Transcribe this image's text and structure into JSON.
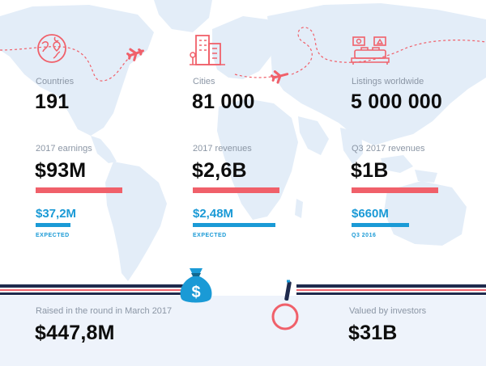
{
  "colors": {
    "accent_red": "#f0606a",
    "accent_blue": "#1a9ad6",
    "map": "#e3edf8",
    "navy": "#1f2a4d"
  },
  "stats_row1": [
    {
      "label": "Countries",
      "value": "191",
      "icon": "globe-pin-icon"
    },
    {
      "label": "Cities",
      "value": "81 000",
      "icon": "city-buildings-icon"
    },
    {
      "label": "Listings worldwide",
      "value": "5 000 000",
      "icon": "bed-room-icon"
    }
  ],
  "stats_row2": [
    {
      "label": "2017 earnings",
      "value": "$93M",
      "sub_value": "$37,2M",
      "sub_note": "EXPECTED",
      "bar_fraction": 0.398
    },
    {
      "label": "2017 revenues",
      "value": "$2,6B",
      "sub_value": "$2,48M",
      "sub_note": "EXPECTED",
      "bar_fraction": 0.954
    },
    {
      "label": "Q3 2017 revenues",
      "value": "$1B",
      "sub_value": "$660M",
      "sub_note": "Q3 2016",
      "bar_fraction": 0.66
    }
  ],
  "bottom": {
    "raised_label": "Raised in the round in March 2017",
    "raised_value": "$447,8M",
    "valued_label": "Valued by investors",
    "valued_value": "$31B",
    "money_icon": "money-bag-icon",
    "magnifier_icon": "magnifier-icon"
  }
}
